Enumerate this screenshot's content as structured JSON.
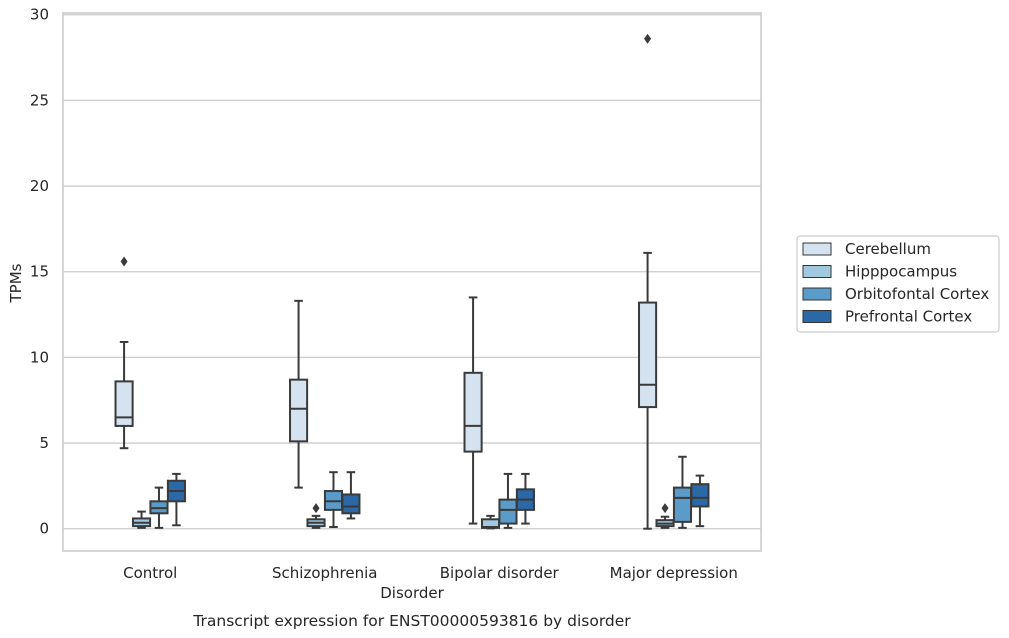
{
  "chart_data": {
    "type": "box",
    "title": "",
    "caption": "Transcript expression for ENST00000593816 by disorder",
    "xlabel": "Disorder",
    "ylabel": "TPMs",
    "ylim": [
      -1.3,
      30.1
    ],
    "yticks": [
      0,
      5,
      10,
      15,
      20,
      25,
      30
    ],
    "grid": "horizontal",
    "legend_position": "right",
    "categories": [
      "Control",
      "Schizophrenia",
      "Bipolar disorder",
      "Major depression"
    ],
    "series": [
      {
        "name": "Cerebellum",
        "color": "#d5e3f1",
        "boxes": [
          {
            "whislo": 4.7,
            "q1": 6.0,
            "med": 6.5,
            "q3": 8.6,
            "whishi": 10.9,
            "fliers": [
              15.6
            ]
          },
          {
            "whislo": 2.4,
            "q1": 5.1,
            "med": 7.0,
            "q3": 8.7,
            "whishi": 13.3,
            "fliers": []
          },
          {
            "whislo": 0.3,
            "q1": 4.5,
            "med": 6.0,
            "q3": 9.1,
            "whishi": 13.5,
            "fliers": []
          },
          {
            "whislo": 0.0,
            "q1": 7.1,
            "med": 8.4,
            "q3": 13.2,
            "whishi": 16.1,
            "fliers": [
              28.6
            ]
          }
        ]
      },
      {
        "name": "Hipppocampus",
        "color": "#a1c8de",
        "boxes": [
          {
            "whislo": 0.05,
            "q1": 0.15,
            "med": 0.35,
            "q3": 0.6,
            "whishi": 1.0,
            "fliers": []
          },
          {
            "whislo": 0.05,
            "q1": 0.15,
            "med": 0.35,
            "q3": 0.55,
            "whishi": 0.75,
            "fliers": [
              1.2
            ]
          },
          {
            "whislo": 0.02,
            "q1": 0.05,
            "med": 0.1,
            "q3": 0.55,
            "whishi": 0.75,
            "fliers": []
          },
          {
            "whislo": 0.05,
            "q1": 0.15,
            "med": 0.3,
            "q3": 0.5,
            "whishi": 0.7,
            "fliers": [
              1.2
            ]
          }
        ]
      },
      {
        "name": "Orbitofontal Cortex",
        "color": "#5a9bc9",
        "boxes": [
          {
            "whislo": 0.05,
            "q1": 0.9,
            "med": 1.2,
            "q3": 1.6,
            "whishi": 2.4,
            "fliers": []
          },
          {
            "whislo": 0.1,
            "q1": 1.1,
            "med": 1.6,
            "q3": 2.2,
            "whishi": 3.3,
            "fliers": []
          },
          {
            "whislo": 0.05,
            "q1": 0.3,
            "med": 1.1,
            "q3": 1.7,
            "whishi": 3.2,
            "fliers": []
          },
          {
            "whislo": 0.05,
            "q1": 0.4,
            "med": 1.8,
            "q3": 2.4,
            "whishi": 4.2,
            "fliers": []
          }
        ]
      },
      {
        "name": "Prefrontal Cortex",
        "color": "#2a68a6",
        "boxes": [
          {
            "whislo": 0.2,
            "q1": 1.6,
            "med": 2.2,
            "q3": 2.8,
            "whishi": 3.2,
            "fliers": []
          },
          {
            "whislo": 0.6,
            "q1": 0.9,
            "med": 1.3,
            "q3": 2.0,
            "whishi": 3.3,
            "fliers": []
          },
          {
            "whislo": 0.3,
            "q1": 1.1,
            "med": 1.7,
            "q3": 2.3,
            "whishi": 3.2,
            "fliers": []
          },
          {
            "whislo": 0.15,
            "q1": 1.3,
            "med": 1.8,
            "q3": 2.6,
            "whishi": 3.1,
            "fliers": []
          }
        ]
      }
    ]
  }
}
